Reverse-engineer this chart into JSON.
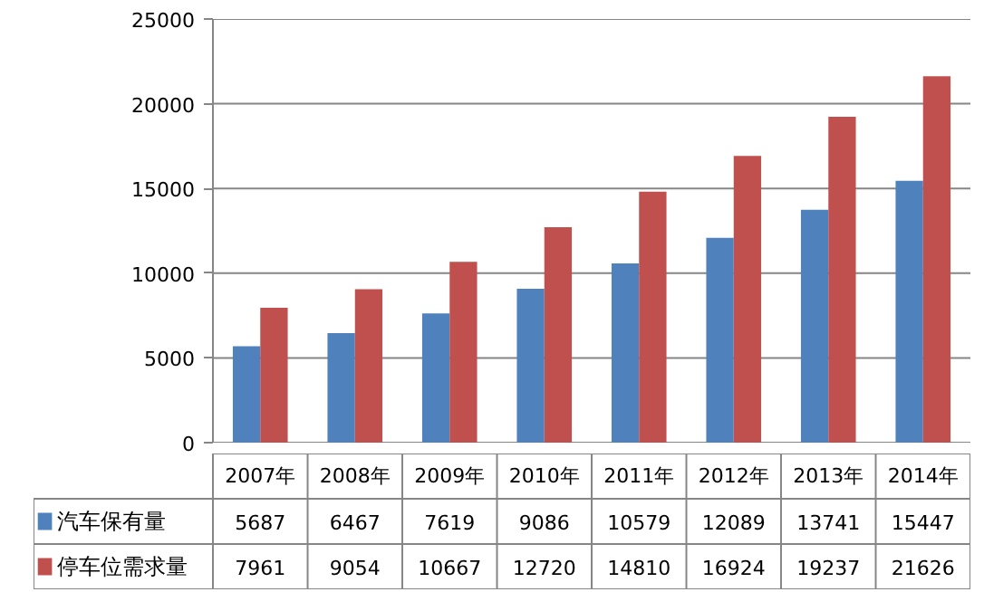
{
  "chart_data": {
    "type": "bar",
    "categories": [
      "2007年",
      "2008年",
      "2009年",
      "2010年",
      "2011年",
      "2012年",
      "2013年",
      "2014年"
    ],
    "series": [
      {
        "name": "汽车保有量",
        "color": "#4f81bd",
        "values": [
          5687,
          6467,
          7619,
          9086,
          10579,
          12089,
          13741,
          15447
        ]
      },
      {
        "name": "停车位需求量",
        "color": "#c0504d",
        "values": [
          7961,
          9054,
          10667,
          12720,
          14810,
          16924,
          19237,
          21626
        ]
      }
    ],
    "ylim": [
      0,
      25000
    ],
    "yticks": [
      0,
      5000,
      10000,
      15000,
      20000,
      25000
    ],
    "grid": "y",
    "data_labels": true,
    "legend": "bottom left"
  }
}
